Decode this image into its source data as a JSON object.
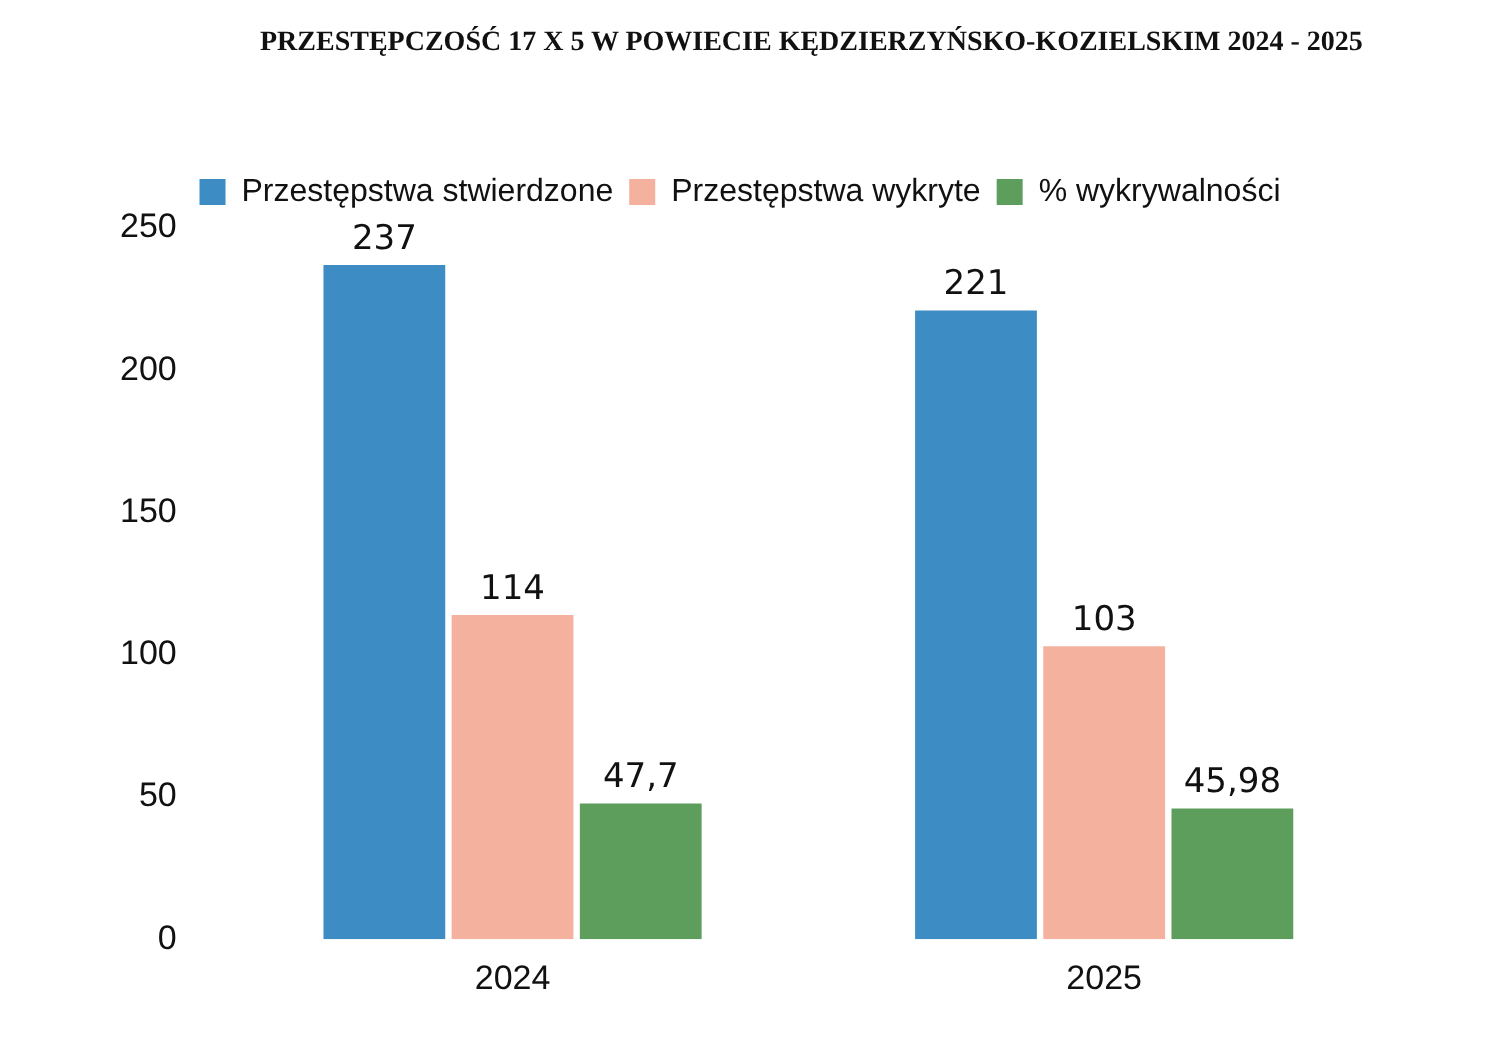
{
  "chart_data": {
    "type": "bar",
    "title": "PRZESTĘPCZOŚĆ 17 X 5 W POWIECIE KĘDZIERZYŃSKO-KOZIELSKIM 2024 - 2025",
    "categories": [
      "2024",
      "2025"
    ],
    "series": [
      {
        "name": "Przestępstwa stwierdzone",
        "color": "#3d8cc4",
        "values": [
          237,
          221
        ],
        "value_labels": [
          "237",
          "221"
        ]
      },
      {
        "name": "Przestępstwa wykryte",
        "color": "#f4b29e",
        "values": [
          114,
          103
        ],
        "value_labels": [
          "114",
          "103"
        ]
      },
      {
        "name": "% wykrywalności",
        "color": "#5e9e5c",
        "values": [
          47.7,
          45.98
        ],
        "value_labels": [
          "47,7",
          "45,98"
        ]
      }
    ],
    "ylim": [
      0,
      250
    ],
    "yticks": [
      0,
      50,
      100,
      150,
      200,
      250
    ],
    "grid": false,
    "legend": "top"
  }
}
